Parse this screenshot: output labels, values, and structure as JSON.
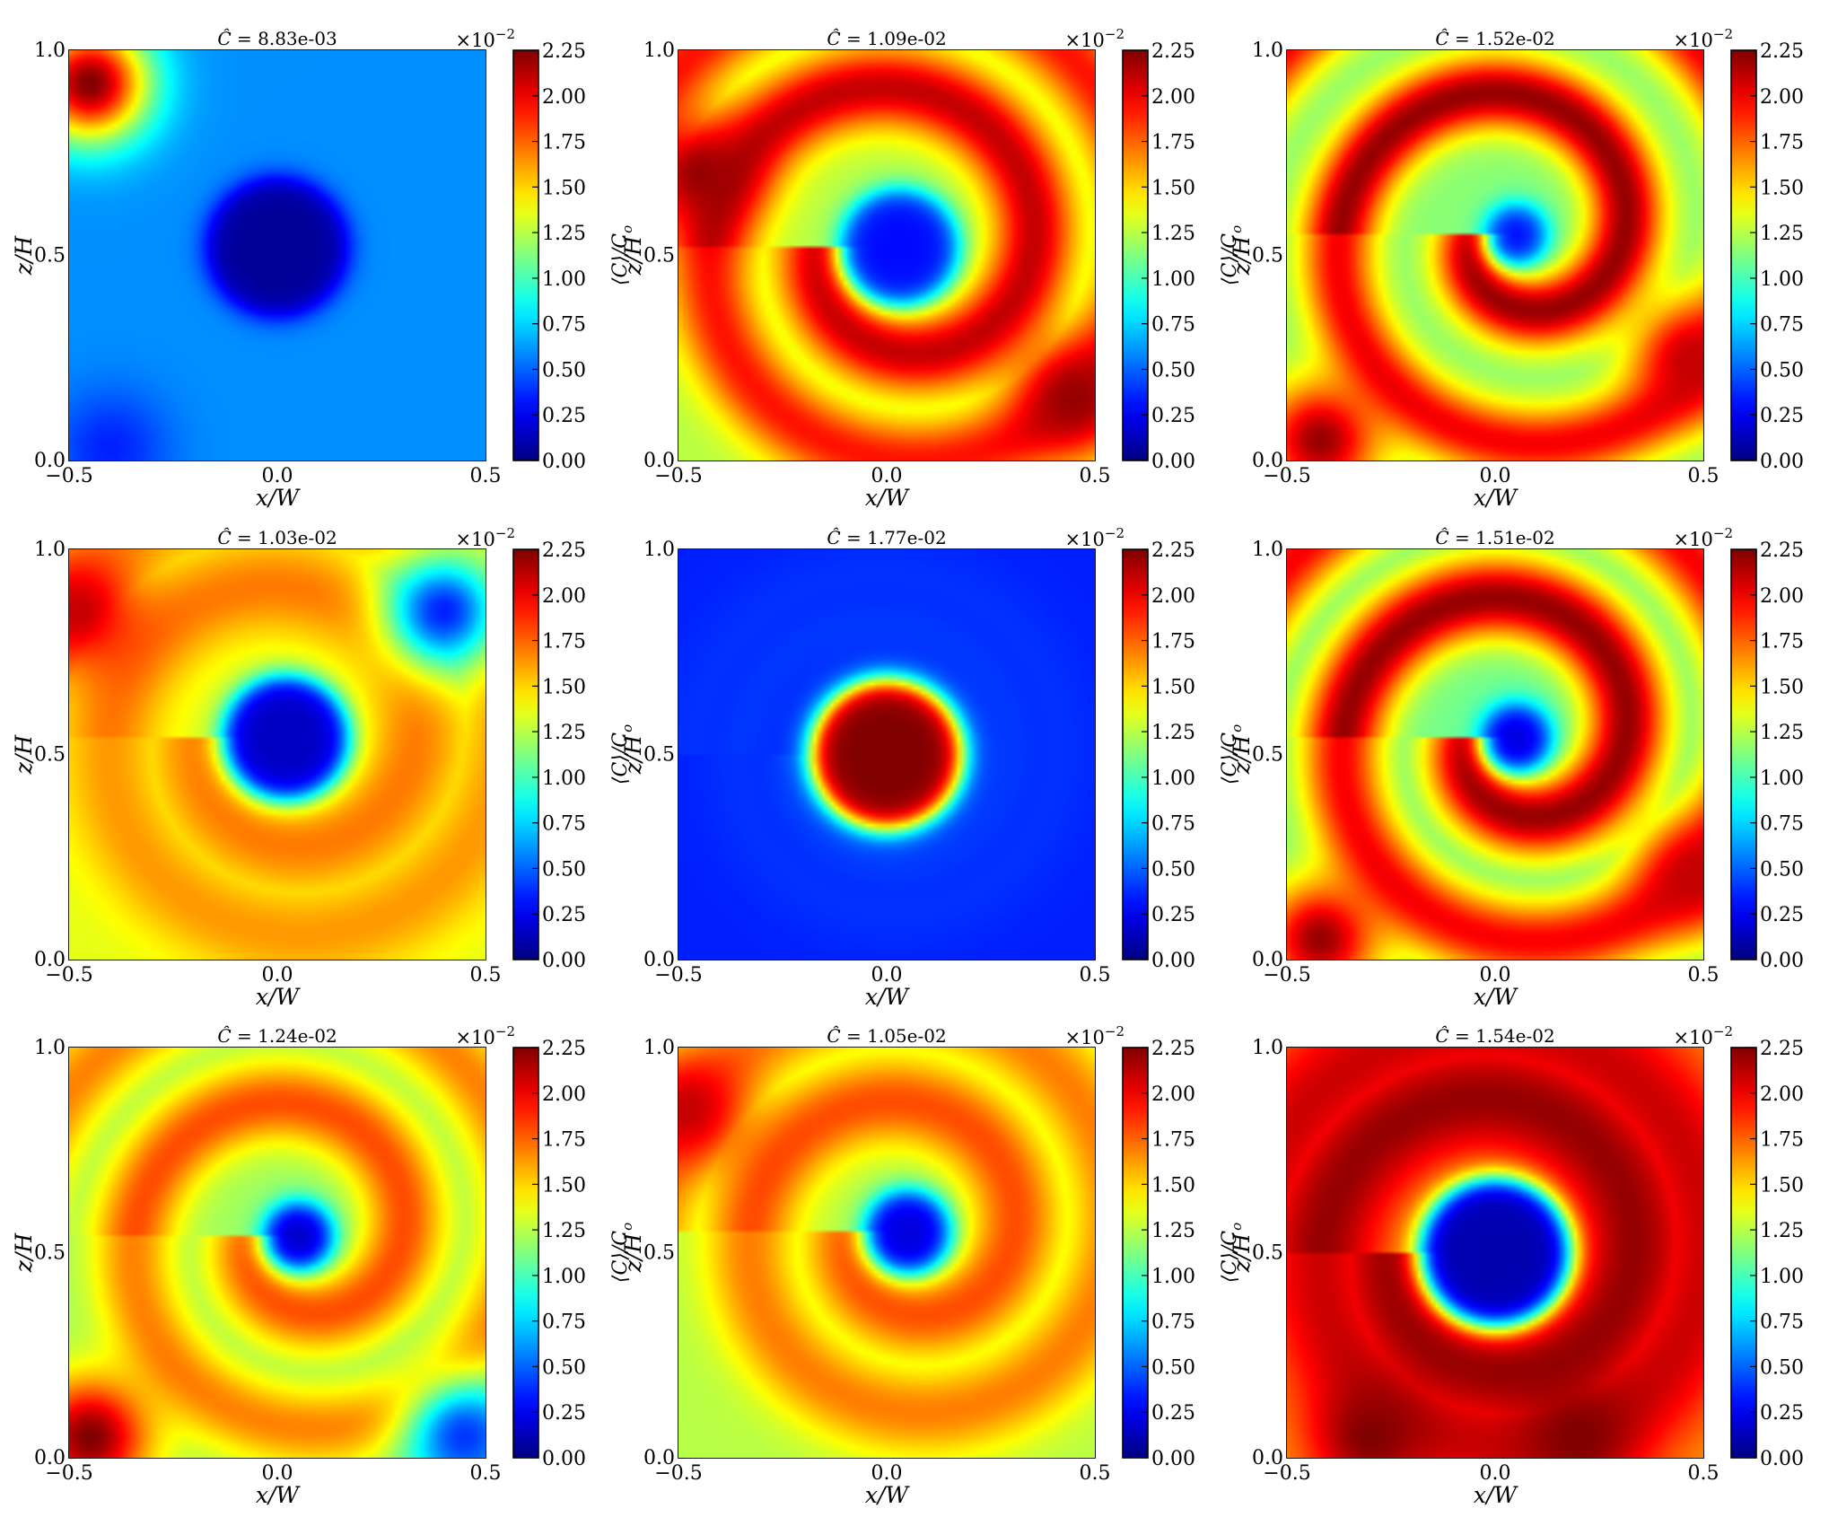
{
  "chart_data": {
    "type": "heatmap",
    "layout": {
      "rows": 3,
      "cols": 3
    },
    "colormap": "jet",
    "grid": true,
    "xlabel": "x/W",
    "ylabel": "z/H",
    "xlim": [
      -0.5,
      0.5
    ],
    "ylim": [
      0.0,
      1.0
    ],
    "xticks": [
      "−0.5",
      "0.0",
      "0.5"
    ],
    "yticks": [
      "0.0",
      "0.5",
      "1.0"
    ],
    "colorbar": {
      "label": "⟨C⟩/C_o",
      "label_main": "⟨C⟩/C",
      "label_sub": "o",
      "multiplier": "×10",
      "multiplier_exp": "−2",
      "range": [
        0.0,
        2.25
      ],
      "ticks": [
        "0.00",
        "0.25",
        "0.50",
        "0.75",
        "1.00",
        "1.25",
        "1.50",
        "1.75",
        "2.00",
        "2.25"
      ]
    },
    "panels": [
      {
        "title_value": "8.83e-03",
        "core": {
          "x": 0.0,
          "z": 0.52,
          "r": 0.17,
          "level": 0.05
        },
        "swirl": {
          "level": 0.6,
          "turns": 0.9,
          "width": 0.12
        },
        "background": 0.6,
        "corners": [
          {
            "x": -0.45,
            "z": 0.92,
            "level": 2.25
          },
          {
            "x": -0.4,
            "z": 0.03,
            "level": 0.35
          }
        ]
      },
      {
        "title_value": "1.09e-02",
        "core": {
          "x": 0.03,
          "z": 0.52,
          "r": 0.14,
          "level": 0.3
        },
        "swirl": {
          "level": 2.1,
          "turns": 1.2,
          "width": 0.1
        },
        "background": 1.25,
        "corners": [
          {
            "x": -0.45,
            "z": 0.7,
            "level": 2.2
          },
          {
            "x": 0.45,
            "z": 0.15,
            "level": 2.2
          }
        ]
      },
      {
        "title_value": "1.52e-02",
        "core": {
          "x": 0.05,
          "z": 0.55,
          "r": 0.07,
          "level": 0.3
        },
        "swirl": {
          "level": 2.2,
          "turns": 1.5,
          "width": 0.09
        },
        "background": 1.15,
        "corners": [
          {
            "x": -0.42,
            "z": 0.05,
            "level": 2.2
          },
          {
            "x": 0.47,
            "z": 0.25,
            "level": 2.1
          }
        ]
      },
      {
        "title_value": "1.03e-02",
        "core": {
          "x": 0.02,
          "z": 0.54,
          "r": 0.15,
          "level": 0.15
        },
        "swirl": {
          "level": 1.7,
          "turns": 1.0,
          "width": 0.12
        },
        "background": 1.35,
        "corners": [
          {
            "x": -0.48,
            "z": 0.85,
            "level": 2.1
          },
          {
            "x": 0.4,
            "z": 0.85,
            "level": 0.35
          }
        ]
      },
      {
        "title_value": "1.77e-02",
        "core": {
          "x": 0.0,
          "z": 0.5,
          "r": 0.18,
          "level": 2.25
        },
        "swirl": {
          "level": 0.4,
          "turns": 0.5,
          "width": 0.1
        },
        "background": 0.35,
        "corners": []
      },
      {
        "title_value": "1.51e-02",
        "core": {
          "x": 0.05,
          "z": 0.54,
          "r": 0.08,
          "level": 0.2
        },
        "swirl": {
          "level": 2.2,
          "turns": 1.4,
          "width": 0.1
        },
        "background": 1.1,
        "corners": [
          {
            "x": -0.42,
            "z": 0.05,
            "level": 2.2
          },
          {
            "x": 0.48,
            "z": 0.2,
            "level": 2.1
          }
        ]
      },
      {
        "title_value": "1.24e-02",
        "core": {
          "x": 0.05,
          "z": 0.54,
          "r": 0.08,
          "level": 0.15
        },
        "swirl": {
          "level": 1.8,
          "turns": 1.3,
          "width": 0.1
        },
        "background": 1.2,
        "corners": [
          {
            "x": -0.45,
            "z": 0.05,
            "level": 2.25
          },
          {
            "x": 0.45,
            "z": 0.05,
            "level": 0.4
          }
        ]
      },
      {
        "title_value": "1.05e-02",
        "core": {
          "x": 0.05,
          "z": 0.55,
          "r": 0.1,
          "level": 0.2
        },
        "swirl": {
          "level": 1.8,
          "turns": 1.1,
          "width": 0.11
        },
        "background": 1.25,
        "corners": [
          {
            "x": -0.48,
            "z": 0.85,
            "level": 2.1
          }
        ]
      },
      {
        "title_value": "1.54e-02",
        "core": {
          "x": 0.0,
          "z": 0.5,
          "r": 0.18,
          "level": 0.1
        },
        "swirl": {
          "level": 2.2,
          "turns": 0.8,
          "width": 0.16
        },
        "background": 1.6,
        "corners": [
          {
            "x": -0.3,
            "z": 0.05,
            "level": 2.25
          },
          {
            "x": 0.2,
            "z": 0.05,
            "level": 2.25
          }
        ]
      }
    ]
  }
}
